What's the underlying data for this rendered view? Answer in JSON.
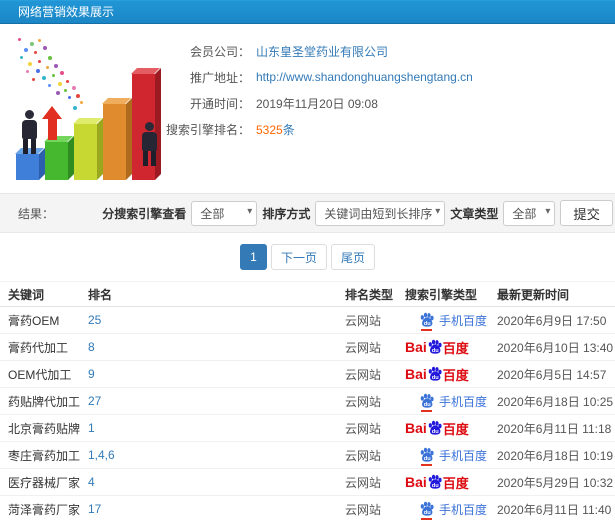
{
  "header": {
    "title": "网络营销效果展示"
  },
  "info": {
    "member_label": "会员公司：",
    "member_value": "山东皇圣堂药业有限公司",
    "url_label": "推广地址：",
    "url_value": "http://www.shandonghuangshengtang.cn",
    "open_label": "开通时间：",
    "open_value": "2019年11月20日 09:08",
    "rank_label": "搜索引擎排名：",
    "rank_count": "5325",
    "rank_unit": "条"
  },
  "filters": {
    "result_label": "结果：",
    "engine_label": "分搜索引擎查看",
    "engine_value": "全部",
    "sort_label": "排序方式",
    "sort_value": "关键词由短到长排序",
    "article_label": "文章类型",
    "article_value": "全部",
    "submit_label": "提交"
  },
  "pagination": {
    "current": "1",
    "next": "下一页",
    "last": "尾页"
  },
  "table": {
    "headers": [
      "关键词",
      "排名",
      "排名类型",
      "搜索引擎类型",
      "最新更新时间"
    ],
    "engine": {
      "mobile_label": "手机百度",
      "baidu_bai": "Bai",
      "baidu_du": "du",
      "baidu_name": "百度"
    },
    "rows": [
      {
        "keyword": "膏药OEM",
        "rank": "25",
        "rank_type": "云网站",
        "engine_type": "mobile",
        "time": "2020年6月9日 17:50"
      },
      {
        "keyword": "膏药代加工",
        "rank": "8",
        "rank_type": "云网站",
        "engine_type": "baidu",
        "time": "2020年6月10日 13:40"
      },
      {
        "keyword": "OEM代加工",
        "rank": "9",
        "rank_type": "云网站",
        "engine_type": "baidu",
        "time": "2020年6月5日 14:57"
      },
      {
        "keyword": "药贴牌代加工",
        "rank": "27",
        "rank_type": "云网站",
        "engine_type": "mobile",
        "time": "2020年6月18日 10:25"
      },
      {
        "keyword": "北京膏药贴牌",
        "rank": "1",
        "rank_type": "云网站",
        "engine_type": "baidu",
        "time": "2020年6月11日 11:18"
      },
      {
        "keyword": "枣庄膏药加工",
        "rank": "1,4,6",
        "rank_type": "云网站",
        "engine_type": "mobile",
        "time": "2020年6月18日 10:19"
      },
      {
        "keyword": "医疗器械厂家",
        "rank": "4",
        "rank_type": "云网站",
        "engine_type": "baidu",
        "time": "2020年5月29日 10:32"
      },
      {
        "keyword": "菏泽膏药厂家",
        "rank": "17",
        "rank_type": "云网站",
        "engine_type": "mobile",
        "time": "2020年6月11日 11:40"
      }
    ]
  },
  "colors": {
    "header_bg": "#1f90d2",
    "link_blue": "#337ab7",
    "highlight_orange": "#ff6600",
    "baidu_red": "#dd0b12",
    "baidu_blue": "#2319dc",
    "mobile_text_blue": "#3a72d8"
  }
}
